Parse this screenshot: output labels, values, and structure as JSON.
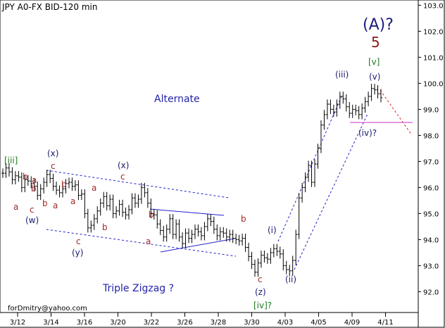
{
  "chart_data": {
    "type": "bar",
    "title": "JPY A0-FX BID-120 min",
    "watermark": "forDmitry@yahoo.com",
    "x_ticks": [
      "3/12",
      "3/14",
      "3/16",
      "3/20",
      "3/22",
      "3/26",
      "3/28",
      "3/30",
      "4/03",
      "4/05",
      "4/09",
      "4/11"
    ],
    "y_ticks": [
      "92.0",
      "93.0",
      "94.0",
      "95.0",
      "96.0",
      "97.0",
      "98.0",
      "99.0",
      "100.0",
      "101.0",
      "102.0",
      "103.0"
    ],
    "ylim": [
      91.2,
      103.2
    ],
    "grid": false,
    "colors": {
      "bars": "#000000",
      "dark_blue": "#1a1a80",
      "navy": "#1a1a6e",
      "red": "#8b1a1a",
      "green": "#1e7a1e",
      "blue_label": "#2222aa",
      "blue_line": "#2222cc",
      "red_dash": "#dd2222",
      "magenta": "#cc33cc",
      "brown_label": "#a02828"
    },
    "series": [
      {
        "values": [
          96.55,
          96.75,
          96.6,
          96.3,
          96.45,
          96.4,
          96.0,
          96.3,
          96.25,
          96.15,
          96.05,
          95.7,
          95.95,
          96.2,
          96.5,
          96.35,
          96.05,
          95.9,
          95.8,
          95.95,
          96.15,
          96.2,
          96.05,
          96.1,
          95.7,
          95.75,
          95.0,
          94.45,
          94.55,
          94.8,
          95.1,
          95.4,
          95.65,
          95.3,
          95.55,
          95.0,
          95.1,
          95.35,
          95.05,
          94.95,
          95.15,
          95.6,
          95.4,
          95.55,
          96.0,
          95.8,
          95.4,
          95.0,
          94.95,
          94.6,
          94.35,
          94.1,
          94.4,
          94.8,
          94.2,
          94.6,
          94.1,
          93.85,
          94.25,
          94.05,
          94.2,
          94.4,
          94.3,
          94.15,
          94.5,
          94.8,
          94.7,
          94.4,
          94.15,
          94.3,
          94.25,
          94.1,
          94.2,
          94.05,
          94.0,
          93.95,
          94.05,
          93.7,
          93.35,
          93.05,
          92.75,
          93.1,
          93.4,
          93.3,
          93.25,
          93.5,
          93.65,
          93.55,
          93.45,
          93.0,
          92.85,
          92.8,
          93.2,
          94.2,
          95.6,
          96.0,
          96.4,
          96.85,
          96.2,
          96.9,
          97.5,
          98.4,
          98.8,
          99.2,
          99.0,
          98.9,
          99.2,
          99.5,
          99.4,
          99.1,
          98.85,
          99.0,
          98.95,
          98.8,
          99.05,
          99.3,
          99.5,
          99.8,
          99.75,
          99.6,
          99.45
        ]
      }
    ],
    "annotations": {
      "wave_label_a": "(A)?",
      "wave_label_5": "5",
      "label_v_bracket": "[v]",
      "label_v_paren": "(v)",
      "label_iii_paren": "(iii)",
      "label_iv_paren": "(iv)?",
      "label_i": "(i)",
      "label_ii": "(ii)",
      "label_z": "(z)",
      "label_c_low": "c",
      "label_b_near_z": "b",
      "label_iv_bracket": "[iv]?",
      "label_iii_bracket": "[iii]",
      "label_x1": "(x)",
      "label_x2": "(x)",
      "label_w": "(w)",
      "label_y": "(y)",
      "label_c_x1": "c",
      "label_c_x2": "c",
      "label_c_w": "c",
      "label_c_y": "c",
      "label_b1": "b",
      "label_b2": "b",
      "label_b3": "b",
      "label_b4": "b",
      "label_b5": "b",
      "label_b6": "b",
      "label_a1": "a",
      "label_a2": "a",
      "label_a3": "a",
      "label_a4": "a",
      "label_a5": "a",
      "label_a6": "a",
      "label_alternate": "Alternate",
      "label_triple_zigzag": "Triple Zigzag ?"
    }
  }
}
